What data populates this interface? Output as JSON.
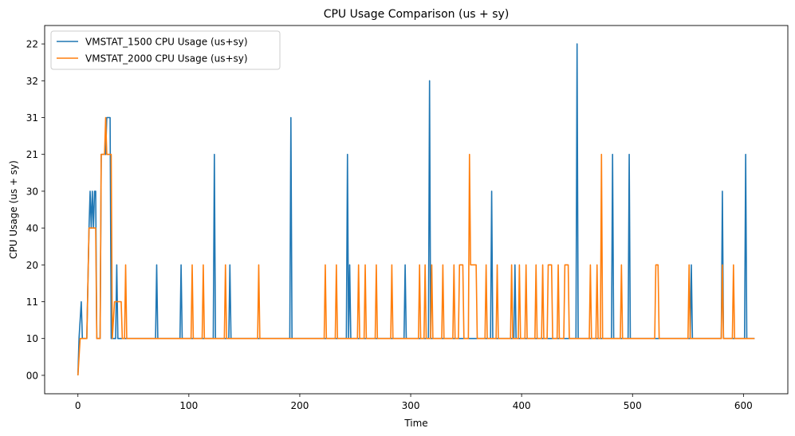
{
  "chart_data": {
    "type": "line",
    "title": "CPU Usage Comparison (us + sy)",
    "xlabel": "Time",
    "ylabel": "CPU Usage (us + sy)",
    "xlim": [
      -30,
      640
    ],
    "x_ticks": [
      0,
      100,
      200,
      300,
      400,
      500,
      600
    ],
    "ylim": [
      -0.5,
      9.5
    ],
    "y_categories": [
      "00",
      "10",
      "11",
      "20",
      "40",
      "30",
      "21",
      "31",
      "32",
      "22"
    ],
    "y_note": "categorical y axis; values are category indices (0 = \"00\" ... 9 = \"22\")",
    "grid": false,
    "legend": "top-left",
    "series": [
      {
        "name": "VMSTAT_1500 CPU Usage (us+sy)",
        "color": "#1f77b4",
        "points": [
          [
            0,
            0
          ],
          [
            1,
            1
          ],
          [
            3,
            2
          ],
          [
            4,
            1
          ],
          [
            8,
            1
          ],
          [
            10,
            4
          ],
          [
            11,
            5
          ],
          [
            12,
            4
          ],
          [
            13,
            5
          ],
          [
            14,
            4
          ],
          [
            15,
            5
          ],
          [
            16,
            5
          ],
          [
            17,
            1
          ],
          [
            20,
            1
          ],
          [
            21,
            6
          ],
          [
            25,
            6
          ],
          [
            26,
            7
          ],
          [
            29,
            7
          ],
          [
            30,
            1
          ],
          [
            34,
            1
          ],
          [
            35,
            3
          ],
          [
            36,
            1
          ],
          [
            70,
            1
          ],
          [
            71,
            3
          ],
          [
            72,
            1
          ],
          [
            92,
            1
          ],
          [
            93,
            3
          ],
          [
            94,
            1
          ],
          [
            122,
            1
          ],
          [
            123,
            6
          ],
          [
            124,
            1
          ],
          [
            136,
            1
          ],
          [
            137,
            3
          ],
          [
            138,
            1
          ],
          [
            191,
            1
          ],
          [
            192,
            7
          ],
          [
            193,
            1
          ],
          [
            242,
            1
          ],
          [
            243,
            6
          ],
          [
            244,
            1
          ],
          [
            245,
            3
          ],
          [
            246,
            1
          ],
          [
            294,
            1
          ],
          [
            295,
            3
          ],
          [
            296,
            1
          ],
          [
            316,
            1
          ],
          [
            317,
            8
          ],
          [
            318,
            1
          ],
          [
            372,
            1
          ],
          [
            373,
            5
          ],
          [
            374,
            1
          ],
          [
            393,
            1
          ],
          [
            394,
            3
          ],
          [
            395,
            1
          ],
          [
            449,
            1
          ],
          [
            450,
            9
          ],
          [
            451,
            1
          ],
          [
            481,
            1
          ],
          [
            482,
            6
          ],
          [
            483,
            1
          ],
          [
            496,
            1
          ],
          [
            497,
            6
          ],
          [
            498,
            1
          ],
          [
            552,
            1
          ],
          [
            553,
            3
          ],
          [
            554,
            1
          ],
          [
            580,
            1
          ],
          [
            581,
            5
          ],
          [
            582,
            1
          ],
          [
            601,
            1
          ],
          [
            602,
            6
          ],
          [
            603,
            1
          ],
          [
            610,
            1
          ]
        ]
      },
      {
        "name": "VMSTAT_2000 CPU Usage (us+sy)",
        "color": "#ff7f0e",
        "points": [
          [
            0,
            0
          ],
          [
            2,
            1
          ],
          [
            8,
            1
          ],
          [
            10,
            4
          ],
          [
            16,
            4
          ],
          [
            17,
            1
          ],
          [
            20,
            1
          ],
          [
            21,
            6
          ],
          [
            24,
            6
          ],
          [
            25,
            7
          ],
          [
            26,
            6
          ],
          [
            30,
            6
          ],
          [
            31,
            1
          ],
          [
            33,
            2
          ],
          [
            39,
            2
          ],
          [
            40,
            1
          ],
          [
            42,
            1
          ],
          [
            43,
            3
          ],
          [
            44,
            1
          ],
          [
            102,
            1
          ],
          [
            103,
            3
          ],
          [
            104,
            1
          ],
          [
            112,
            1
          ],
          [
            113,
            3
          ],
          [
            114,
            1
          ],
          [
            132,
            1
          ],
          [
            133,
            3
          ],
          [
            134,
            1
          ],
          [
            162,
            1
          ],
          [
            163,
            3
          ],
          [
            164,
            1
          ],
          [
            222,
            1
          ],
          [
            223,
            3
          ],
          [
            224,
            1
          ],
          [
            232,
            1
          ],
          [
            233,
            3
          ],
          [
            234,
            1
          ],
          [
            252,
            1
          ],
          [
            253,
            3
          ],
          [
            254,
            1
          ],
          [
            258,
            1
          ],
          [
            259,
            3
          ],
          [
            260,
            1
          ],
          [
            268,
            1
          ],
          [
            269,
            3
          ],
          [
            270,
            1
          ],
          [
            282,
            1
          ],
          [
            283,
            3
          ],
          [
            284,
            1
          ],
          [
            307,
            1
          ],
          [
            308,
            3
          ],
          [
            309,
            1
          ],
          [
            312,
            1
          ],
          [
            313,
            3
          ],
          [
            314,
            1
          ],
          [
            318,
            1
          ],
          [
            319,
            3
          ],
          [
            320,
            1
          ],
          [
            328,
            1
          ],
          [
            329,
            3
          ],
          [
            330,
            1
          ],
          [
            338,
            1
          ],
          [
            339,
            3
          ],
          [
            340,
            1
          ],
          [
            343,
            1
          ],
          [
            344,
            3
          ],
          [
            347,
            3
          ],
          [
            348,
            1
          ],
          [
            352,
            1
          ],
          [
            353,
            6
          ],
          [
            354,
            3
          ],
          [
            359,
            3
          ],
          [
            360,
            1
          ],
          [
            367,
            1
          ],
          [
            368,
            3
          ],
          [
            369,
            1
          ],
          [
            377,
            1
          ],
          [
            378,
            3
          ],
          [
            379,
            1
          ],
          [
            390,
            1
          ],
          [
            391,
            3
          ],
          [
            392,
            1
          ],
          [
            397,
            1
          ],
          [
            398,
            3
          ],
          [
            399,
            1
          ],
          [
            403,
            1
          ],
          [
            404,
            3
          ],
          [
            405,
            1
          ],
          [
            412,
            1
          ],
          [
            413,
            3
          ],
          [
            414,
            1
          ],
          [
            418,
            1
          ],
          [
            419,
            3
          ],
          [
            420,
            1
          ],
          [
            423,
            1
          ],
          [
            424,
            3
          ],
          [
            427,
            3
          ],
          [
            428,
            1
          ],
          [
            432,
            1
          ],
          [
            433,
            3
          ],
          [
            434,
            1
          ],
          [
            438,
            1
          ],
          [
            439,
            3
          ],
          [
            442,
            3
          ],
          [
            443,
            1
          ],
          [
            461,
            1
          ],
          [
            462,
            3
          ],
          [
            463,
            1
          ],
          [
            467,
            1
          ],
          [
            468,
            3
          ],
          [
            469,
            1
          ],
          [
            471,
            1
          ],
          [
            472,
            6
          ],
          [
            473,
            1
          ],
          [
            489,
            1
          ],
          [
            490,
            3
          ],
          [
            491,
            1
          ],
          [
            520,
            1
          ],
          [
            521,
            3
          ],
          [
            523,
            3
          ],
          [
            524,
            1
          ],
          [
            550,
            1
          ],
          [
            551,
            3
          ],
          [
            552,
            1
          ],
          [
            580,
            1
          ],
          [
            581,
            3
          ],
          [
            582,
            1
          ],
          [
            590,
            1
          ],
          [
            591,
            3
          ],
          [
            592,
            1
          ],
          [
            610,
            1
          ]
        ]
      }
    ]
  }
}
